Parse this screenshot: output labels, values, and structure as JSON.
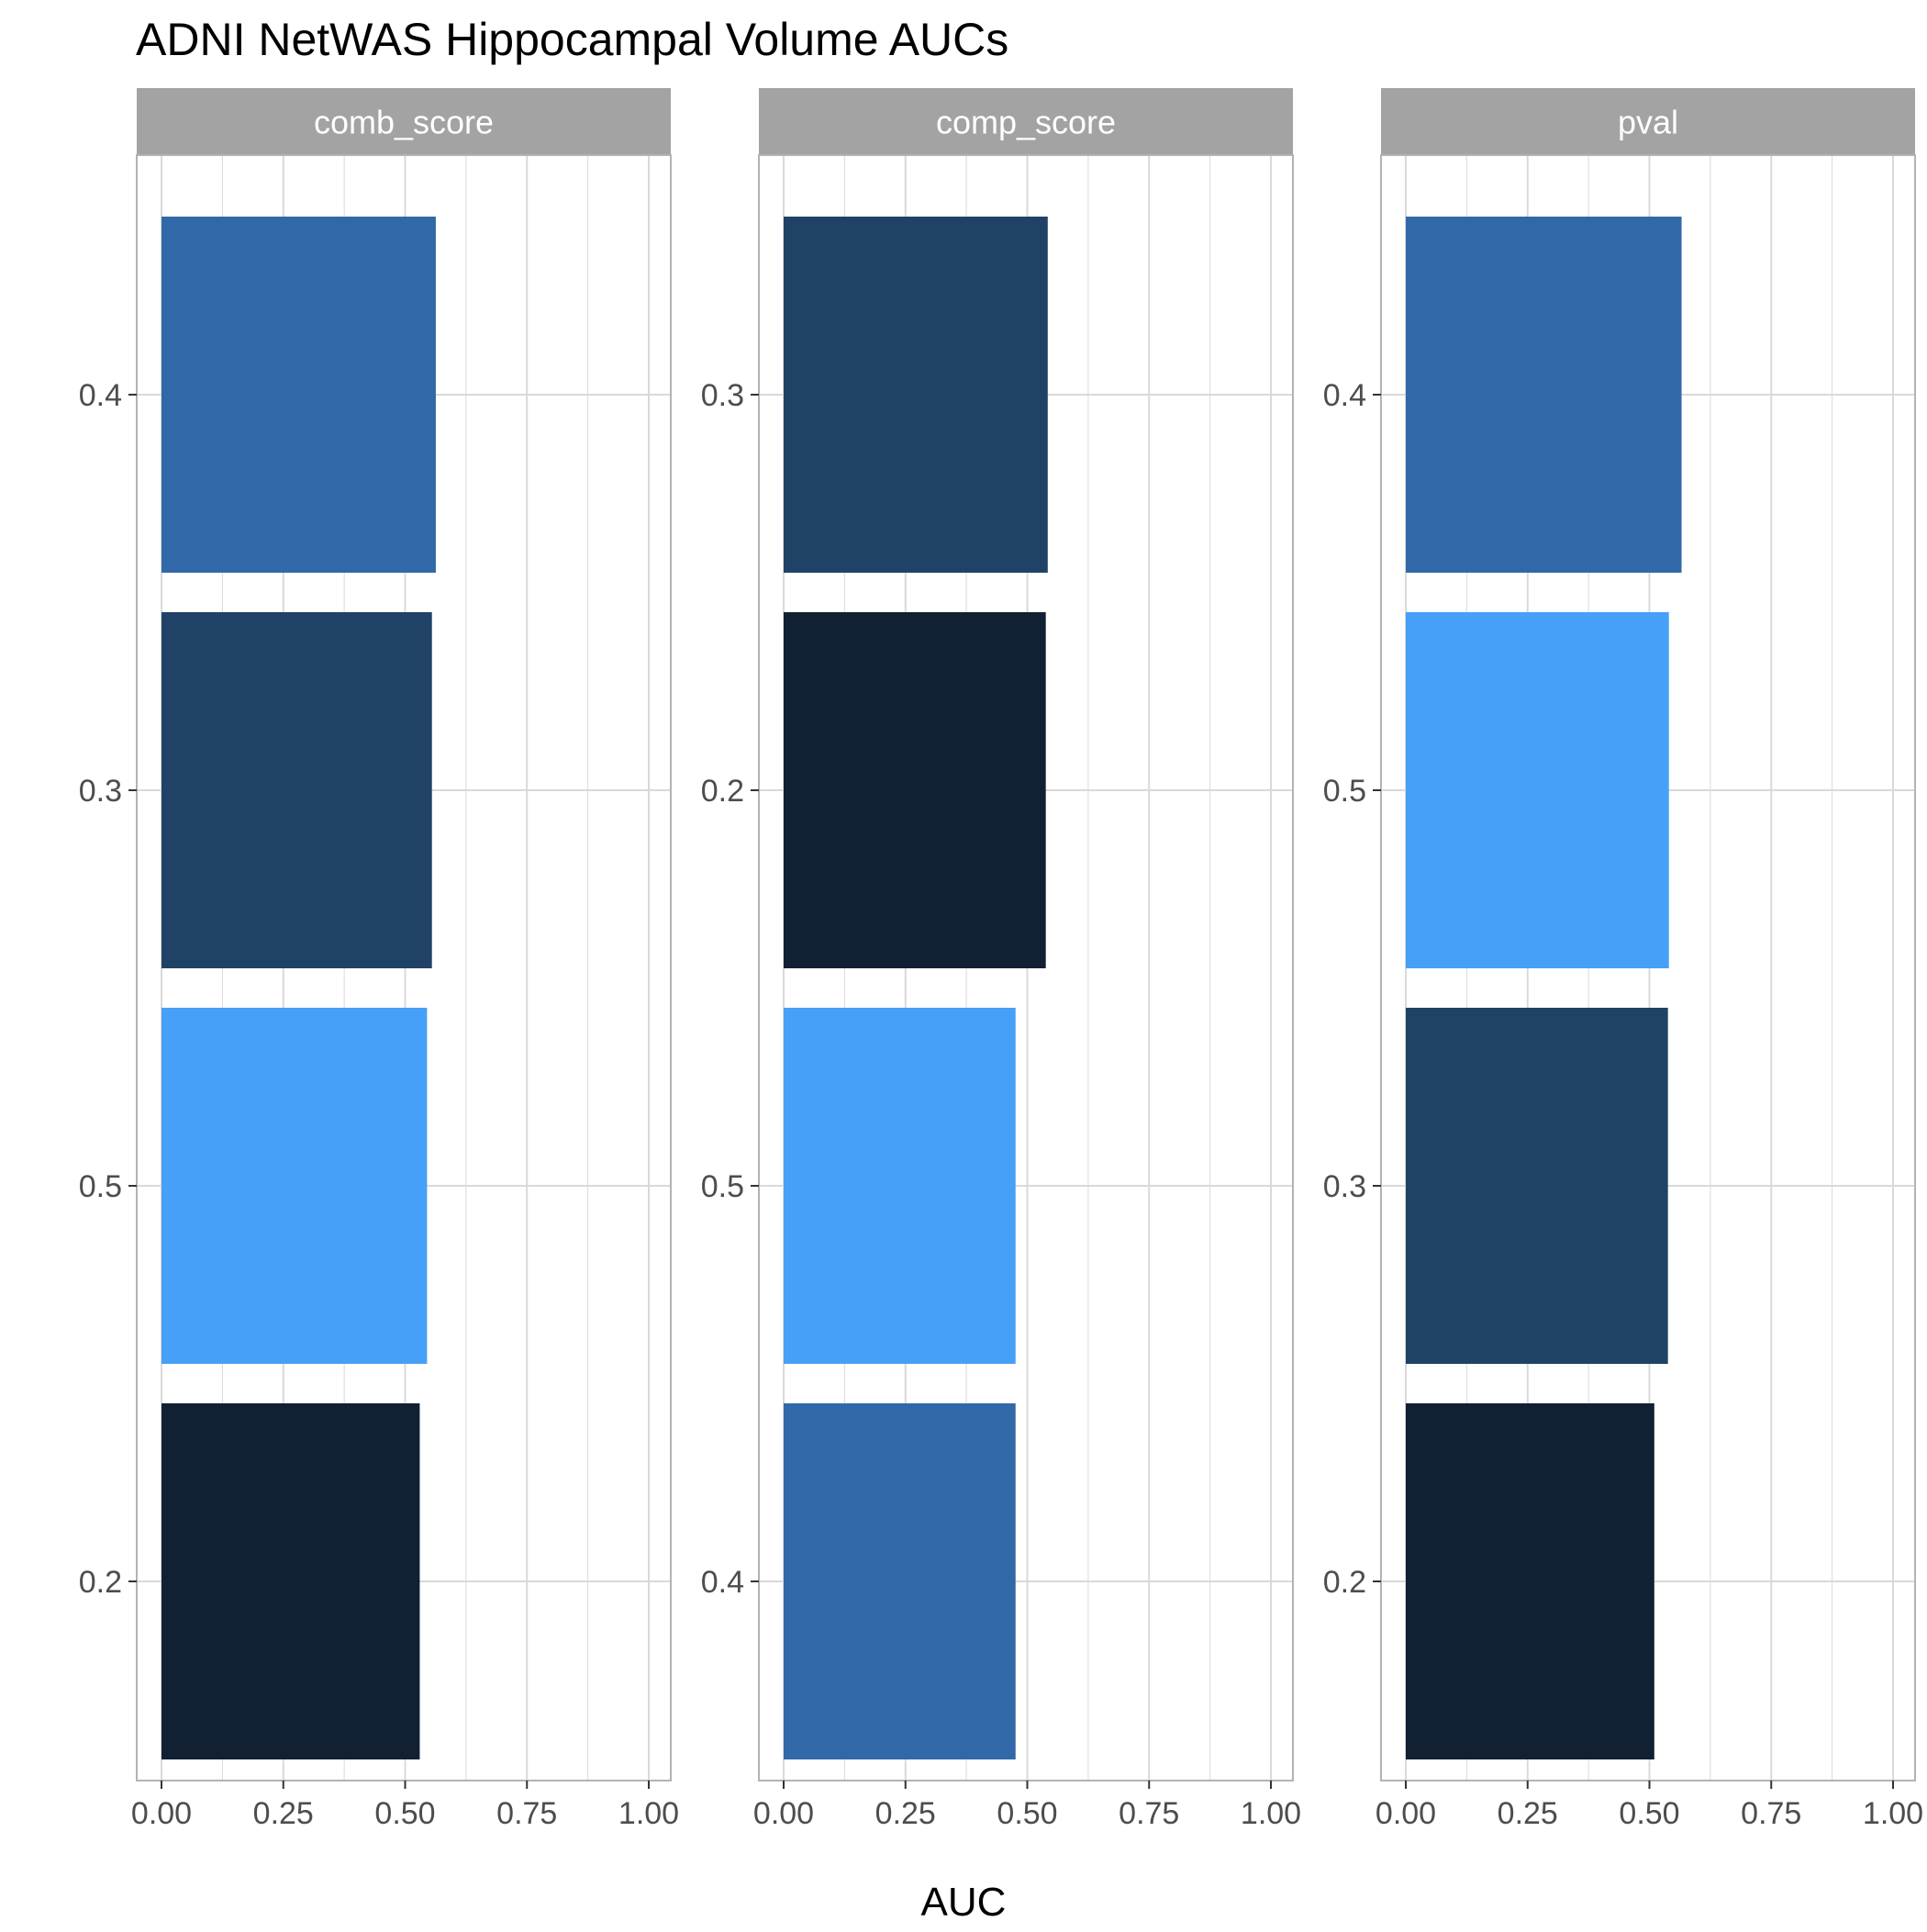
{
  "chart_data": {
    "type": "bar",
    "orientation": "horizontal",
    "title": "ADNI NetWAS Hippocampal Volume AUCs",
    "xlabel": "AUC",
    "ylabel": "",
    "xlim": [
      0,
      1
    ],
    "x_ticks": [
      "0.00",
      "0.25",
      "0.50",
      "0.75",
      "1.00"
    ],
    "grid": true,
    "legend": "none",
    "colors": {
      "0.2": "#112033",
      "0.3": "#204266",
      "0.4": "#3169A8",
      "0.5": "#47A0F7",
      "strip_bg": "#A3A3A3",
      "strip_text": "#FFFFFF",
      "grid": "#D9D9D9",
      "axis_text": "#4D4D4D"
    },
    "panels": [
      {
        "facet": "comb_score",
        "categories": [
          "0.2",
          "0.5",
          "0.3",
          "0.4"
        ],
        "values": [
          0.53,
          0.545,
          0.555,
          0.563
        ]
      },
      {
        "facet": "comp_score",
        "categories": [
          "0.4",
          "0.5",
          "0.2",
          "0.3"
        ],
        "values": [
          0.476,
          0.476,
          0.538,
          0.542
        ]
      },
      {
        "facet": "pval",
        "categories": [
          "0.2",
          "0.3",
          "0.5",
          "0.4"
        ],
        "values": [
          0.51,
          0.538,
          0.54,
          0.566
        ]
      }
    ]
  }
}
